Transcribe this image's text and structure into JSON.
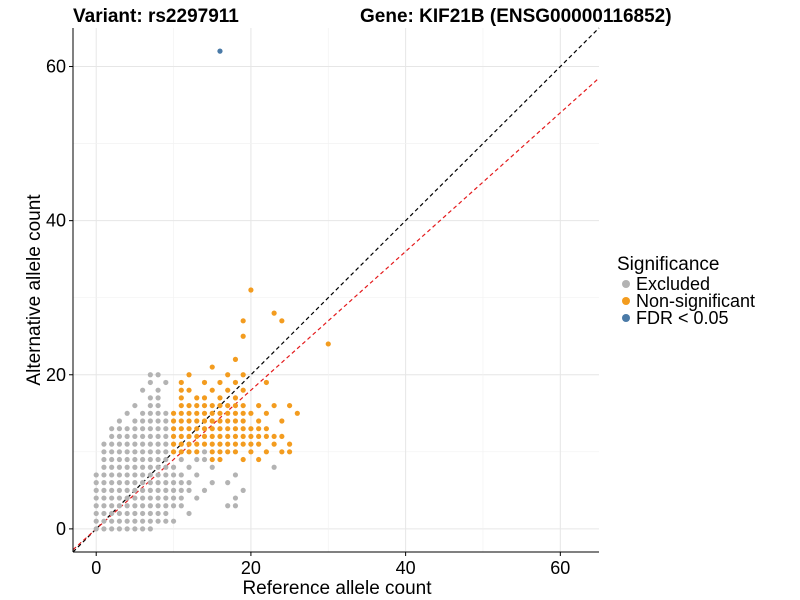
{
  "chart_data": {
    "type": "scatter",
    "title_left": "Variant: rs2297911",
    "title_right": "Gene: KIF21B (ENSG00000116852)",
    "xlabel": "Reference allele count",
    "ylabel": "Alternative allele count",
    "xlim": [
      -3,
      65
    ],
    "ylim": [
      -3,
      65
    ],
    "x_ticks": [
      0,
      20,
      40,
      60
    ],
    "y_ticks": [
      0,
      20,
      40,
      60
    ],
    "grid": true,
    "legend": {
      "title": "Significance",
      "placement": "right",
      "entries": [
        {
          "label": "Excluded",
          "color": "#b3b3b3"
        },
        {
          "label": "Non-significant",
          "color": "#f39c1f"
        },
        {
          "label": "FDR < 0.05",
          "color": "#4a7aa7"
        }
      ]
    },
    "reference_lines": [
      {
        "slope": 1,
        "intercept": 0,
        "color": "#000000",
        "style": "dashed"
      },
      {
        "slope": 0.9,
        "intercept": 0,
        "color": "#e41a1c",
        "style": "dashed"
      }
    ],
    "series": [
      {
        "name": "Excluded",
        "color": "#b3b3b3",
        "points": [
          [
            0,
            0
          ],
          [
            1,
            0
          ],
          [
            2,
            0
          ],
          [
            3,
            0
          ],
          [
            4,
            0
          ],
          [
            5,
            0
          ],
          [
            6,
            0
          ],
          [
            7,
            0
          ],
          [
            0,
            1
          ],
          [
            1,
            1
          ],
          [
            2,
            1
          ],
          [
            3,
            1
          ],
          [
            4,
            1
          ],
          [
            5,
            1
          ],
          [
            6,
            1
          ],
          [
            7,
            1
          ],
          [
            8,
            1
          ],
          [
            9,
            1
          ],
          [
            10,
            1
          ],
          [
            0,
            2
          ],
          [
            1,
            2
          ],
          [
            2,
            2
          ],
          [
            3,
            2
          ],
          [
            4,
            2
          ],
          [
            5,
            2
          ],
          [
            6,
            2
          ],
          [
            7,
            2
          ],
          [
            8,
            2
          ],
          [
            9,
            2
          ],
          [
            12,
            2
          ],
          [
            0,
            3
          ],
          [
            1,
            3
          ],
          [
            2,
            3
          ],
          [
            3,
            3
          ],
          [
            4,
            3
          ],
          [
            5,
            3
          ],
          [
            6,
            3
          ],
          [
            7,
            3
          ],
          [
            8,
            3
          ],
          [
            9,
            3
          ],
          [
            10,
            3
          ],
          [
            11,
            3
          ],
          [
            17,
            3
          ],
          [
            18,
            3
          ],
          [
            0,
            4
          ],
          [
            1,
            4
          ],
          [
            2,
            4
          ],
          [
            3,
            4
          ],
          [
            4,
            4
          ],
          [
            5,
            4
          ],
          [
            6,
            4
          ],
          [
            7,
            4
          ],
          [
            8,
            4
          ],
          [
            9,
            4
          ],
          [
            10,
            4
          ],
          [
            11,
            4
          ],
          [
            13,
            4
          ],
          [
            18,
            4
          ],
          [
            0,
            5
          ],
          [
            1,
            5
          ],
          [
            2,
            5
          ],
          [
            3,
            5
          ],
          [
            4,
            5
          ],
          [
            5,
            5
          ],
          [
            6,
            5
          ],
          [
            7,
            5
          ],
          [
            8,
            5
          ],
          [
            9,
            5
          ],
          [
            10,
            5
          ],
          [
            11,
            5
          ],
          [
            12,
            5
          ],
          [
            14,
            5
          ],
          [
            19,
            5
          ],
          [
            0,
            6
          ],
          [
            1,
            6
          ],
          [
            2,
            6
          ],
          [
            3,
            6
          ],
          [
            4,
            6
          ],
          [
            5,
            6
          ],
          [
            6,
            6
          ],
          [
            7,
            6
          ],
          [
            8,
            6
          ],
          [
            9,
            6
          ],
          [
            10,
            6
          ],
          [
            11,
            6
          ],
          [
            12,
            6
          ],
          [
            15,
            6
          ],
          [
            17,
            6
          ],
          [
            0,
            7
          ],
          [
            1,
            7
          ],
          [
            2,
            7
          ],
          [
            3,
            7
          ],
          [
            4,
            7
          ],
          [
            5,
            7
          ],
          [
            6,
            7
          ],
          [
            7,
            7
          ],
          [
            8,
            7
          ],
          [
            9,
            7
          ],
          [
            10,
            7
          ],
          [
            11,
            7
          ],
          [
            13,
            7
          ],
          [
            18,
            7
          ],
          [
            1,
            8
          ],
          [
            2,
            8
          ],
          [
            3,
            8
          ],
          [
            4,
            8
          ],
          [
            5,
            8
          ],
          [
            6,
            8
          ],
          [
            7,
            8
          ],
          [
            8,
            8
          ],
          [
            9,
            8
          ],
          [
            10,
            8
          ],
          [
            12,
            8
          ],
          [
            15,
            8
          ],
          [
            23,
            8
          ],
          [
            1,
            9
          ],
          [
            2,
            9
          ],
          [
            3,
            9
          ],
          [
            4,
            9
          ],
          [
            5,
            9
          ],
          [
            6,
            9
          ],
          [
            7,
            9
          ],
          [
            8,
            9
          ],
          [
            9,
            9
          ],
          [
            11,
            9
          ],
          [
            13,
            9
          ],
          [
            14,
            9
          ],
          [
            1,
            10
          ],
          [
            2,
            10
          ],
          [
            3,
            10
          ],
          [
            4,
            10
          ],
          [
            5,
            10
          ],
          [
            6,
            10
          ],
          [
            7,
            10
          ],
          [
            8,
            10
          ],
          [
            9,
            10
          ],
          [
            14,
            10
          ],
          [
            1,
            11
          ],
          [
            2,
            11
          ],
          [
            3,
            11
          ],
          [
            4,
            11
          ],
          [
            5,
            11
          ],
          [
            6,
            11
          ],
          [
            7,
            11
          ],
          [
            8,
            11
          ],
          [
            9,
            11
          ],
          [
            2,
            12
          ],
          [
            3,
            12
          ],
          [
            4,
            12
          ],
          [
            5,
            12
          ],
          [
            6,
            12
          ],
          [
            7,
            12
          ],
          [
            8,
            12
          ],
          [
            9,
            12
          ],
          [
            2,
            13
          ],
          [
            3,
            13
          ],
          [
            4,
            13
          ],
          [
            5,
            13
          ],
          [
            6,
            13
          ],
          [
            7,
            13
          ],
          [
            8,
            13
          ],
          [
            9,
            13
          ],
          [
            3,
            14
          ],
          [
            5,
            14
          ],
          [
            6,
            14
          ],
          [
            7,
            14
          ],
          [
            8,
            14
          ],
          [
            9,
            14
          ],
          [
            4,
            15
          ],
          [
            6,
            15
          ],
          [
            7,
            15
          ],
          [
            8,
            15
          ],
          [
            9,
            15
          ],
          [
            5,
            16
          ],
          [
            7,
            16
          ],
          [
            8,
            16
          ],
          [
            7,
            17
          ],
          [
            8,
            17
          ],
          [
            6,
            18
          ],
          [
            8,
            18
          ],
          [
            7,
            19
          ],
          [
            9,
            19
          ],
          [
            7,
            20
          ],
          [
            8,
            20
          ]
        ]
      },
      {
        "name": "Non-significant",
        "color": "#f39c1f",
        "points": [
          [
            10,
            10
          ],
          [
            10,
            11
          ],
          [
            10,
            12
          ],
          [
            10,
            13
          ],
          [
            10,
            14
          ],
          [
            10,
            15
          ],
          [
            11,
            10
          ],
          [
            11,
            11
          ],
          [
            11,
            12
          ],
          [
            11,
            13
          ],
          [
            11,
            14
          ],
          [
            11,
            15
          ],
          [
            11,
            16
          ],
          [
            11,
            17
          ],
          [
            11,
            18
          ],
          [
            11,
            19
          ],
          [
            12,
            10
          ],
          [
            12,
            11
          ],
          [
            12,
            12
          ],
          [
            12,
            13
          ],
          [
            12,
            14
          ],
          [
            12,
            15
          ],
          [
            12,
            16
          ],
          [
            12,
            18
          ],
          [
            12,
            20
          ],
          [
            13,
            10
          ],
          [
            13,
            11
          ],
          [
            13,
            12
          ],
          [
            13,
            13
          ],
          [
            13,
            14
          ],
          [
            13,
            15
          ],
          [
            13,
            16
          ],
          [
            13,
            17
          ],
          [
            14,
            11
          ],
          [
            14,
            12
          ],
          [
            14,
            13
          ],
          [
            14,
            14
          ],
          [
            14,
            15
          ],
          [
            14,
            16
          ],
          [
            14,
            17
          ],
          [
            14,
            19
          ],
          [
            15,
            9
          ],
          [
            15,
            10
          ],
          [
            15,
            11
          ],
          [
            15,
            12
          ],
          [
            15,
            13
          ],
          [
            15,
            14
          ],
          [
            15,
            15
          ],
          [
            15,
            16
          ],
          [
            15,
            18
          ],
          [
            15,
            21
          ],
          [
            16,
            9
          ],
          [
            16,
            10
          ],
          [
            16,
            11
          ],
          [
            16,
            12
          ],
          [
            16,
            13
          ],
          [
            16,
            14
          ],
          [
            16,
            15
          ],
          [
            16,
            16
          ],
          [
            16,
            17
          ],
          [
            16,
            19
          ],
          [
            17,
            10
          ],
          [
            17,
            11
          ],
          [
            17,
            12
          ],
          [
            17,
            13
          ],
          [
            17,
            14
          ],
          [
            17,
            15
          ],
          [
            17,
            16
          ],
          [
            17,
            18
          ],
          [
            17,
            20
          ],
          [
            18,
            10
          ],
          [
            18,
            11
          ],
          [
            18,
            12
          ],
          [
            18,
            13
          ],
          [
            18,
            14
          ],
          [
            18,
            15
          ],
          [
            18,
            16
          ],
          [
            18,
            17
          ],
          [
            18,
            19
          ],
          [
            18,
            22
          ],
          [
            19,
            9
          ],
          [
            19,
            11
          ],
          [
            19,
            12
          ],
          [
            19,
            13
          ],
          [
            19,
            14
          ],
          [
            19,
            15
          ],
          [
            19,
            16
          ],
          [
            19,
            18
          ],
          [
            19,
            20
          ],
          [
            19,
            25
          ],
          [
            19,
            27
          ],
          [
            20,
            10
          ],
          [
            20,
            11
          ],
          [
            20,
            12
          ],
          [
            20,
            13
          ],
          [
            20,
            15
          ],
          [
            20,
            31
          ],
          [
            21,
            9
          ],
          [
            21,
            11
          ],
          [
            21,
            12
          ],
          [
            21,
            13
          ],
          [
            21,
            14
          ],
          [
            21,
            16
          ],
          [
            22,
            10
          ],
          [
            22,
            12
          ],
          [
            22,
            13
          ],
          [
            22,
            15
          ],
          [
            22,
            19
          ],
          [
            23,
            11
          ],
          [
            23,
            12
          ],
          [
            23,
            16
          ],
          [
            23,
            28
          ],
          [
            24,
            10
          ],
          [
            24,
            12
          ],
          [
            24,
            14
          ],
          [
            24,
            27
          ],
          [
            25,
            10
          ],
          [
            25,
            11
          ],
          [
            25,
            16
          ],
          [
            26,
            15
          ],
          [
            30,
            24
          ]
        ]
      },
      {
        "name": "FDR < 0.05",
        "color": "#4a7aa7",
        "points": [
          [
            16,
            62
          ]
        ]
      }
    ]
  }
}
